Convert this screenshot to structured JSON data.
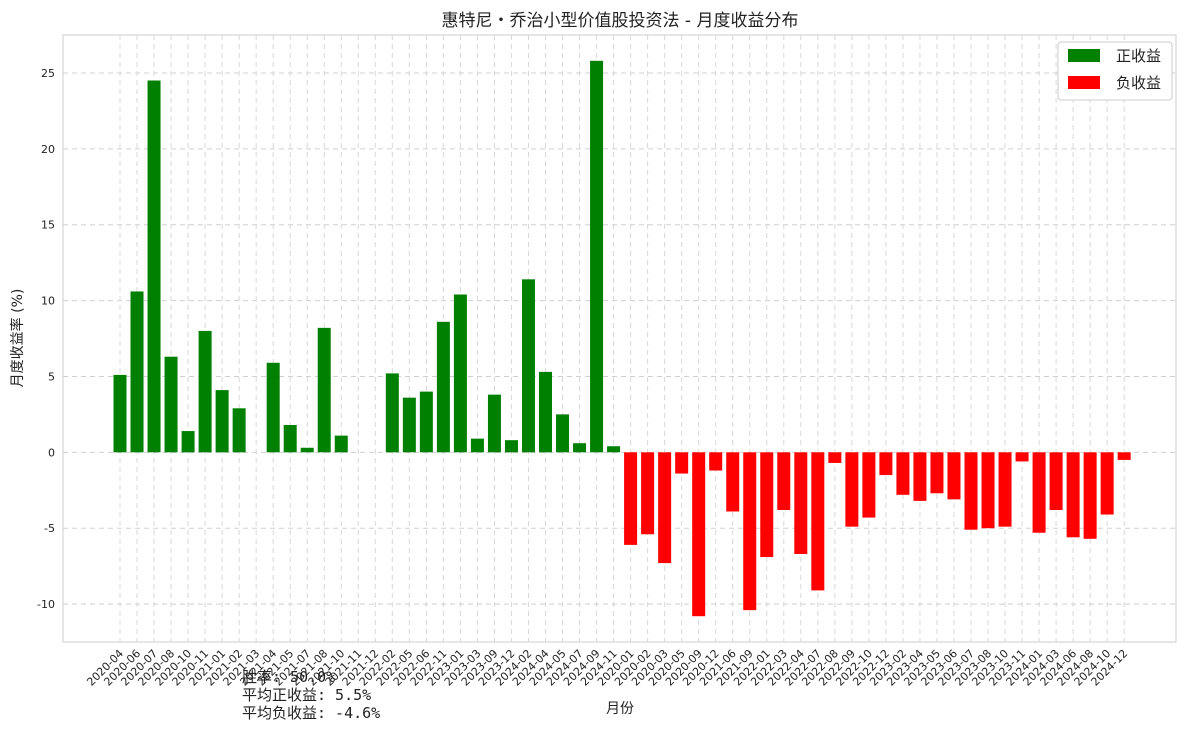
{
  "chart_data": {
    "type": "bar",
    "title": "惠特尼・乔治小型价值股投资法 - 月度收益分布",
    "xlabel": "月份",
    "ylabel": "月度收益率 (%)",
    "ylim": [
      -12.5,
      27.5
    ],
    "yticks": [
      -10,
      -5,
      0,
      5,
      10,
      15,
      20,
      25
    ],
    "grid": true,
    "legend": "top-right",
    "categories": [
      "2020-04",
      "2020-06",
      "2020-07",
      "2020-08",
      "2020-10",
      "2020-11",
      "2021-01",
      "2021-02",
      "2021-03",
      "2021-04",
      "2021-05",
      "2021-07",
      "2021-08",
      "2021-10",
      "2021-11",
      "2021-12",
      "2022-02",
      "2022-05",
      "2022-06",
      "2022-11",
      "2023-01",
      "2023-03",
      "2023-09",
      "2023-12",
      "2024-02",
      "2024-04",
      "2024-05",
      "2024-07",
      "2024-09",
      "2024-11",
      "2020-01",
      "2020-02",
      "2020-03",
      "2020-05",
      "2020-09",
      "2020-12",
      "2021-06",
      "2021-09",
      "2022-01",
      "2022-03",
      "2022-04",
      "2022-07",
      "2022-08",
      "2022-09",
      "2022-10",
      "2022-12",
      "2023-02",
      "2023-04",
      "2023-05",
      "2023-06",
      "2023-07",
      "2023-08",
      "2023-10",
      "2023-11",
      "2024-01",
      "2024-03",
      "2024-06",
      "2024-08",
      "2024-10",
      "2024-12"
    ],
    "series": [
      {
        "name": "正收益",
        "color": "#008000",
        "values": [
          5.1,
          10.6,
          24.5,
          6.3,
          1.4,
          8.0,
          4.1,
          2.9,
          null,
          5.9,
          1.8,
          0.3,
          8.2,
          1.1,
          null,
          null,
          5.2,
          3.6,
          4.0,
          8.6,
          10.4,
          0.9,
          3.8,
          0.8,
          11.4,
          5.3,
          2.5,
          0.6,
          25.8,
          0.4,
          null,
          null,
          null,
          null,
          null,
          null,
          null,
          null,
          null,
          null,
          null,
          null,
          null,
          null,
          null,
          null,
          null,
          null,
          null,
          null,
          null,
          null,
          null,
          null,
          null,
          null,
          null,
          null,
          null,
          null
        ]
      },
      {
        "name": "负收益",
        "color": "#ff0000",
        "values": [
          null,
          null,
          null,
          null,
          null,
          null,
          null,
          null,
          null,
          null,
          null,
          null,
          null,
          null,
          null,
          null,
          null,
          null,
          null,
          null,
          null,
          null,
          null,
          null,
          null,
          null,
          null,
          null,
          null,
          null,
          -6.1,
          -5.4,
          -7.3,
          -1.4,
          -10.8,
          -1.2,
          -3.9,
          -10.4,
          -6.9,
          -3.8,
          -6.7,
          -9.1,
          -0.7,
          -4.9,
          -4.3,
          -1.5,
          -2.8,
          -3.2,
          -2.7,
          -3.1,
          -5.1,
          -5.0,
          -4.9,
          -0.6,
          -5.3,
          -3.8,
          -5.6,
          -5.7,
          -4.1,
          -0.5
        ]
      }
    ]
  },
  "stats": {
    "win_rate": "胜率: 50.0%",
    "avg_positive": "平均正收益: 5.5%",
    "avg_negative": "平均负收益: -4.6%"
  }
}
